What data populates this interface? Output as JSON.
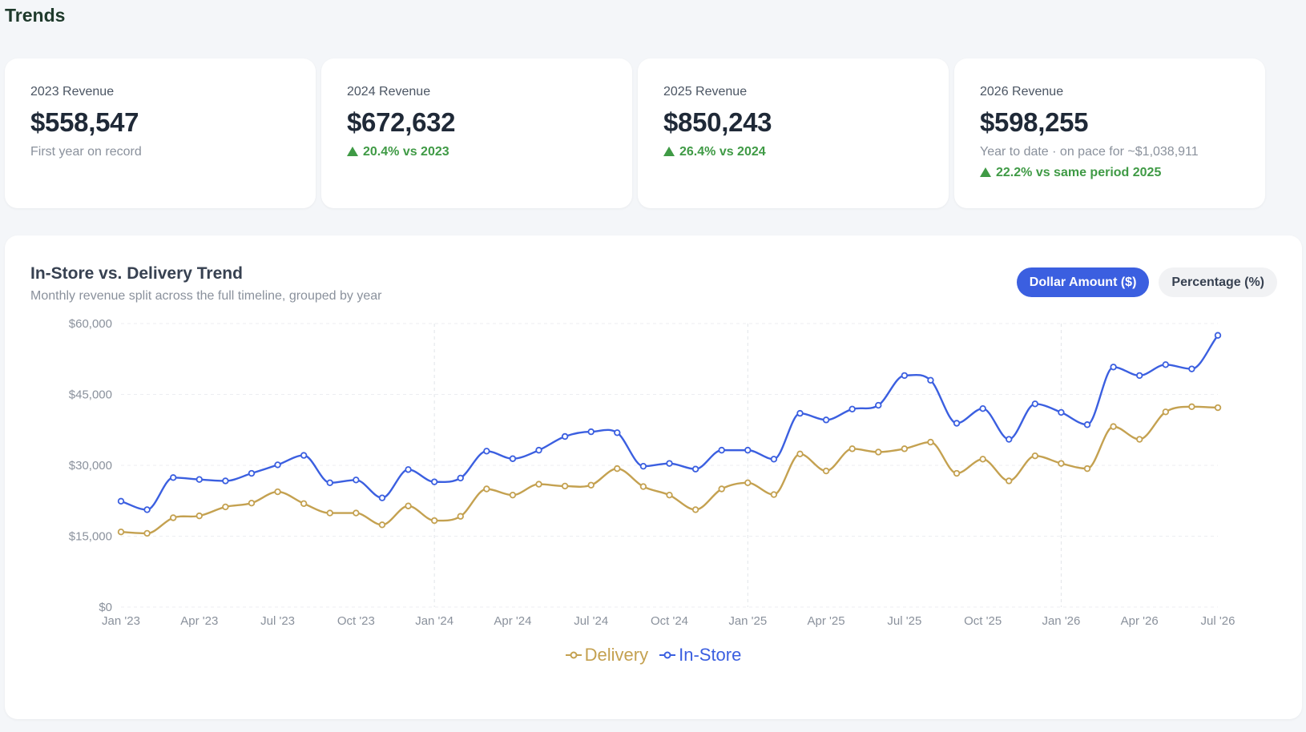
{
  "page": {
    "title": "Trends"
  },
  "kpis": [
    {
      "label": "2023 Revenue",
      "value": "$558,547",
      "sub": "First year on record",
      "delta": ""
    },
    {
      "label": "2024 Revenue",
      "value": "$672,632",
      "sub": "",
      "delta": "20.4% vs 2023"
    },
    {
      "label": "2025 Revenue",
      "value": "$850,243",
      "sub": "",
      "delta": "26.4% vs 2024"
    },
    {
      "label": "2026 Revenue",
      "value": "$598,255",
      "sub": "Year to date · on pace for ~$1,038,911",
      "delta": "22.2% vs same period 2025"
    }
  ],
  "chart": {
    "title": "In-Store vs. Delivery Trend",
    "subtitle": "Monthly revenue split across the full timeline, grouped by year",
    "toggle": {
      "dollar": "Dollar Amount ($)",
      "percent": "Percentage (%)",
      "selected": "dollar"
    }
  },
  "colors": {
    "in_store": "#3b5fe0",
    "delivery": "#c4a150",
    "delta_up": "#3f9a45"
  },
  "chart_data": {
    "type": "line",
    "title": "In-Store vs. Delivery Trend",
    "subtitle": "Monthly revenue split across the full timeline, grouped by year",
    "xlabel": "",
    "ylabel": "",
    "x": [
      "2023-01",
      "2023-02",
      "2023-03",
      "2023-04",
      "2023-05",
      "2023-06",
      "2023-07",
      "2023-08",
      "2023-09",
      "2023-10",
      "2023-11",
      "2023-12",
      "2024-01",
      "2024-02",
      "2024-03",
      "2024-04",
      "2024-05",
      "2024-06",
      "2024-07",
      "2024-08",
      "2024-09",
      "2024-10",
      "2024-11",
      "2024-12",
      "2025-01",
      "2025-02",
      "2025-03",
      "2025-04",
      "2025-05",
      "2025-06",
      "2025-07",
      "2025-08",
      "2025-09",
      "2025-10",
      "2025-11",
      "2025-12",
      "2026-01",
      "2026-02",
      "2026-03",
      "2026-04",
      "2026-05",
      "2026-06",
      "2026-07"
    ],
    "x_tick_labels": [
      "Jan '23",
      "Apr '23",
      "Jul '23",
      "Oct '23",
      "Jan '24",
      "Apr '24",
      "Jul '24",
      "Oct '24",
      "Jan '25",
      "Apr '25",
      "Jul '25",
      "Oct '25",
      "Jan '26",
      "Apr '26",
      "Jul '26"
    ],
    "year_boundaries": [
      "2024-01",
      "2025-01",
      "2026-01"
    ],
    "y_ticks": [
      "$0",
      "$15,000",
      "$30,000",
      "$45,000",
      "$60,000"
    ],
    "ylim": [
      0,
      60000
    ],
    "grid": true,
    "legend": "bottom-center",
    "series": [
      {
        "name": "Delivery",
        "values": [
          15900,
          15600,
          18900,
          19300,
          21200,
          22000,
          24400,
          21900,
          19900,
          19900,
          17400,
          21400,
          18300,
          19200,
          25000,
          23700,
          26000,
          25600,
          25800,
          29300,
          25500,
          23700,
          20600,
          25000,
          26300,
          23800,
          32400,
          28800,
          33500,
          32800,
          33500,
          34900,
          28300,
          31300,
          26700,
          32000,
          30400,
          29300,
          38200,
          35500,
          41300,
          42400,
          42200
        ]
      },
      {
        "name": "In-Store",
        "values": [
          22400,
          20600,
          27400,
          27000,
          26700,
          28300,
          30100,
          32100,
          26300,
          26900,
          23100,
          29100,
          26500,
          27300,
          33000,
          31400,
          33200,
          36100,
          37100,
          36900,
          29800,
          30400,
          29200,
          33200,
          33200,
          31300,
          41000,
          39600,
          41900,
          42700,
          49000,
          48000,
          38900,
          42000,
          35500,
          43000,
          41200,
          38600,
          50800,
          49000,
          51300,
          50400,
          57500
        ]
      }
    ]
  }
}
